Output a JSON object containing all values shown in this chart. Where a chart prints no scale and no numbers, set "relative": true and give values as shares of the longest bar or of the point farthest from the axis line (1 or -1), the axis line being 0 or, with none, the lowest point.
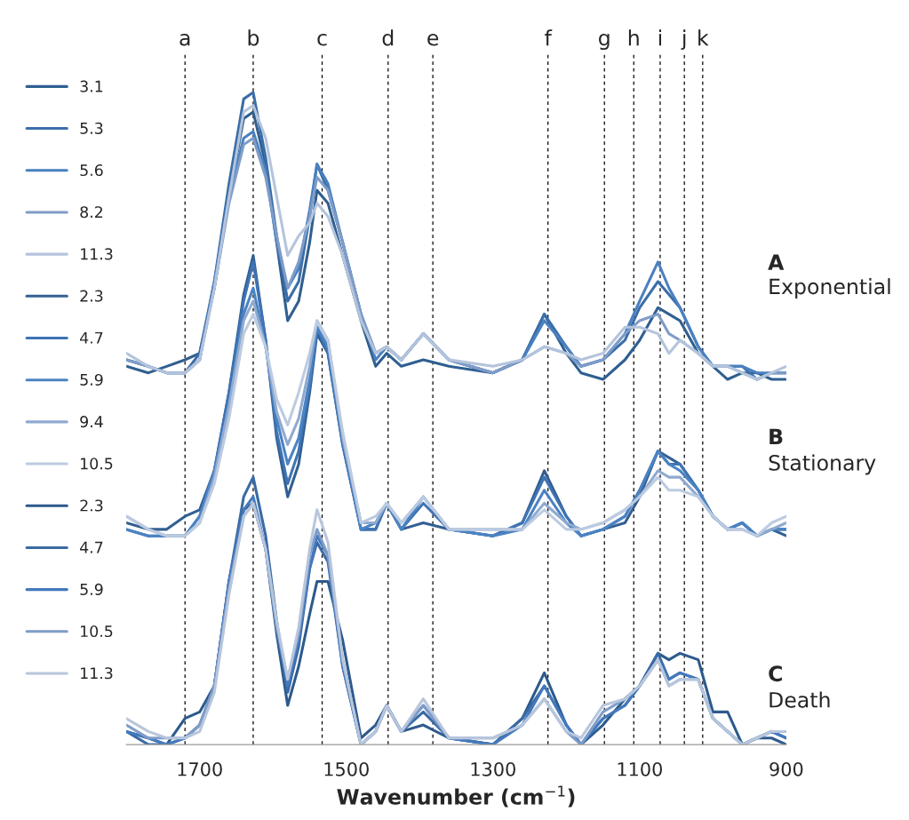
{
  "chart_data": {
    "type": "line",
    "relative": true,
    "xlabel": "Wavenumber (cm$^{−1}$)",
    "xlim": [
      1800,
      900
    ],
    "xticks": [
      1700,
      1500,
      1300,
      1100,
      900
    ],
    "legend": "left",
    "x": [
      1800,
      1770,
      1745,
      1720,
      1700,
      1680,
      1660,
      1640,
      1627,
      1610,
      1595,
      1580,
      1565,
      1550,
      1540,
      1525,
      1505,
      1480,
      1460,
      1445,
      1425,
      1395,
      1360,
      1300,
      1260,
      1230,
      1200,
      1180,
      1150,
      1120,
      1100,
      1075,
      1060,
      1045,
      1020,
      1000,
      980,
      960,
      940,
      920,
      900
    ],
    "series": [
      {
        "name": "3.1",
        "color": "#2f5f90",
        "values": [
          0.58,
          0.57,
          0.58,
          0.59,
          0.6,
          0.7,
          0.84,
          0.96,
          0.97,
          0.89,
          0.77,
          0.65,
          0.68,
          0.77,
          0.85,
          0.83,
          0.75,
          0.65,
          0.58,
          0.6,
          0.58,
          0.59,
          0.58,
          0.57,
          0.59,
          0.66,
          0.6,
          0.57,
          0.56,
          0.59,
          0.62,
          0.67,
          0.66,
          0.65,
          0.6,
          0.58,
          0.56,
          0.57,
          0.57,
          0.56,
          0.56
        ]
      },
      {
        "name": "5.3",
        "color": "#3a6ea8",
        "values": [
          0.59,
          0.58,
          0.57,
          0.57,
          0.6,
          0.71,
          0.86,
          0.99,
          1.0,
          0.9,
          0.78,
          0.68,
          0.71,
          0.81,
          0.89,
          0.85,
          0.77,
          0.66,
          0.6,
          0.61,
          0.59,
          0.63,
          0.59,
          0.57,
          0.59,
          0.66,
          0.61,
          0.58,
          0.59,
          0.62,
          0.67,
          0.71,
          0.69,
          0.67,
          0.61,
          0.58,
          0.58,
          0.58,
          0.56,
          0.57,
          0.57
        ]
      },
      {
        "name": "5.6",
        "color": "#4a80c0",
        "values": [
          0.59,
          0.58,
          0.57,
          0.57,
          0.59,
          0.71,
          0.84,
          0.93,
          0.94,
          0.88,
          0.77,
          0.7,
          0.73,
          0.82,
          0.89,
          0.86,
          0.77,
          0.66,
          0.59,
          0.61,
          0.59,
          0.63,
          0.59,
          0.57,
          0.59,
          0.65,
          0.61,
          0.58,
          0.59,
          0.63,
          0.68,
          0.74,
          0.7,
          0.67,
          0.61,
          0.58,
          0.58,
          0.58,
          0.57,
          0.57,
          0.57
        ]
      },
      {
        "name": "8.2",
        "color": "#7f9cc8",
        "values": [
          0.59,
          0.58,
          0.57,
          0.57,
          0.59,
          0.7,
          0.83,
          0.92,
          0.93,
          0.87,
          0.78,
          0.7,
          0.74,
          0.81,
          0.87,
          0.85,
          0.77,
          0.66,
          0.6,
          0.61,
          0.59,
          0.63,
          0.59,
          0.57,
          0.59,
          0.61,
          0.6,
          0.58,
          0.59,
          0.63,
          0.65,
          0.66,
          0.63,
          0.62,
          0.6,
          0.58,
          0.58,
          0.57,
          0.56,
          0.57,
          0.57
        ]
      },
      {
        "name": "11.3",
        "color": "#b4c4dc",
        "values": [
          0.6,
          0.58,
          0.57,
          0.57,
          0.59,
          0.7,
          0.84,
          0.97,
          0.98,
          0.93,
          0.84,
          0.75,
          0.78,
          0.8,
          0.83,
          0.81,
          0.75,
          0.65,
          0.6,
          0.61,
          0.59,
          0.63,
          0.59,
          0.58,
          0.59,
          0.61,
          0.6,
          0.59,
          0.6,
          0.64,
          0.64,
          0.63,
          0.6,
          0.62,
          0.6,
          0.58,
          0.58,
          0.57,
          0.56,
          0.57,
          0.58
        ]
      },
      {
        "name": "2.3",
        "color": "#335f92",
        "values": [
          0.34,
          0.33,
          0.33,
          0.35,
          0.36,
          0.42,
          0.54,
          0.69,
          0.75,
          0.62,
          0.47,
          0.38,
          0.43,
          0.54,
          0.63,
          0.6,
          0.46,
          0.33,
          0.33,
          0.37,
          0.33,
          0.34,
          0.33,
          0.32,
          0.34,
          0.42,
          0.35,
          0.32,
          0.33,
          0.34,
          0.38,
          0.45,
          0.44,
          0.43,
          0.39,
          0.35,
          0.33,
          0.34,
          0.32,
          0.33,
          0.32
        ]
      },
      {
        "name": "4.7",
        "color": "#3e74b4",
        "values": [
          0.33,
          0.32,
          0.32,
          0.32,
          0.35,
          0.42,
          0.54,
          0.68,
          0.74,
          0.62,
          0.48,
          0.4,
          0.45,
          0.55,
          0.64,
          0.6,
          0.46,
          0.33,
          0.33,
          0.37,
          0.33,
          0.37,
          0.33,
          0.32,
          0.34,
          0.41,
          0.35,
          0.32,
          0.33,
          0.35,
          0.39,
          0.45,
          0.43,
          0.43,
          0.39,
          0.35,
          0.33,
          0.34,
          0.32,
          0.33,
          0.33
        ]
      },
      {
        "name": "5.9",
        "color": "#4b83c3",
        "values": [
          0.33,
          0.32,
          0.32,
          0.32,
          0.35,
          0.42,
          0.52,
          0.66,
          0.7,
          0.61,
          0.5,
          0.43,
          0.47,
          0.56,
          0.64,
          0.61,
          0.47,
          0.33,
          0.34,
          0.37,
          0.33,
          0.38,
          0.33,
          0.32,
          0.33,
          0.39,
          0.34,
          0.32,
          0.33,
          0.35,
          0.39,
          0.45,
          0.43,
          0.42,
          0.39,
          0.35,
          0.33,
          0.34,
          0.32,
          0.33,
          0.33
        ]
      },
      {
        "name": "9.4",
        "color": "#8faad0",
        "values": [
          0.35,
          0.33,
          0.32,
          0.32,
          0.34,
          0.41,
          0.52,
          0.65,
          0.68,
          0.61,
          0.51,
          0.46,
          0.5,
          0.58,
          0.65,
          0.62,
          0.47,
          0.34,
          0.34,
          0.37,
          0.34,
          0.38,
          0.33,
          0.33,
          0.33,
          0.37,
          0.34,
          0.33,
          0.34,
          0.36,
          0.38,
          0.42,
          0.41,
          0.41,
          0.38,
          0.35,
          0.33,
          0.33,
          0.32,
          0.33,
          0.34
        ]
      },
      {
        "name": "10.5",
        "color": "#bccbe0",
        "values": [
          0.35,
          0.33,
          0.32,
          0.32,
          0.34,
          0.4,
          0.5,
          0.63,
          0.66,
          0.61,
          0.53,
          0.49,
          0.54,
          0.6,
          0.65,
          0.62,
          0.48,
          0.34,
          0.35,
          0.37,
          0.34,
          0.38,
          0.33,
          0.33,
          0.33,
          0.36,
          0.33,
          0.33,
          0.34,
          0.36,
          0.38,
          0.41,
          0.39,
          0.39,
          0.38,
          0.35,
          0.33,
          0.33,
          0.32,
          0.34,
          0.35
        ]
      },
      {
        "name": "2.3",
        "color": "#2d5a8c",
        "values": [
          0.02,
          0.01,
          0.0,
          0.04,
          0.05,
          0.09,
          0.25,
          0.36,
          0.37,
          0.3,
          0.17,
          0.06,
          0.12,
          0.2,
          0.25,
          0.25,
          0.16,
          0.01,
          0.03,
          0.06,
          0.02,
          0.03,
          0.01,
          0.0,
          0.04,
          0.11,
          0.03,
          0.0,
          0.03,
          0.07,
          0.09,
          0.14,
          0.13,
          0.14,
          0.13,
          0.05,
          0.05,
          0.0,
          0.01,
          0.01,
          0.0
        ]
      },
      {
        "name": "4.7",
        "color": "#3a6aa5",
        "values": [
          0.02,
          0.0,
          0.0,
          0.01,
          0.03,
          0.09,
          0.25,
          0.38,
          0.41,
          0.32,
          0.19,
          0.08,
          0.15,
          0.27,
          0.31,
          0.28,
          0.12,
          0.0,
          0.02,
          0.06,
          0.02,
          0.05,
          0.01,
          0.0,
          0.04,
          0.09,
          0.03,
          0.0,
          0.04,
          0.06,
          0.09,
          0.14,
          0.1,
          0.11,
          0.1,
          0.04,
          0.02,
          0.0,
          0.01,
          0.02,
          0.01
        ]
      },
      {
        "name": "5.9",
        "color": "#4379bd",
        "values": [
          0.02,
          0.01,
          0.0,
          0.01,
          0.03,
          0.09,
          0.25,
          0.36,
          0.38,
          0.3,
          0.18,
          0.09,
          0.16,
          0.27,
          0.32,
          0.29,
          0.12,
          0.0,
          0.02,
          0.06,
          0.02,
          0.06,
          0.01,
          0.0,
          0.03,
          0.09,
          0.03,
          0.0,
          0.04,
          0.06,
          0.09,
          0.13,
          0.1,
          0.11,
          0.1,
          0.04,
          0.02,
          0.0,
          0.01,
          0.02,
          0.01
        ]
      },
      {
        "name": "10.5",
        "color": "#7f9cc8",
        "values": [
          0.03,
          0.01,
          0.01,
          0.01,
          0.03,
          0.09,
          0.24,
          0.35,
          0.37,
          0.3,
          0.18,
          0.1,
          0.17,
          0.29,
          0.33,
          0.29,
          0.13,
          0.0,
          0.02,
          0.06,
          0.02,
          0.06,
          0.01,
          0.01,
          0.03,
          0.07,
          0.02,
          0.0,
          0.05,
          0.07,
          0.09,
          0.13,
          0.09,
          0.1,
          0.1,
          0.04,
          0.02,
          0.0,
          0.01,
          0.02,
          0.02
        ]
      },
      {
        "name": "11.3",
        "color": "#b8c6dc",
        "values": [
          0.04,
          0.02,
          0.01,
          0.01,
          0.02,
          0.08,
          0.23,
          0.35,
          0.37,
          0.3,
          0.19,
          0.1,
          0.18,
          0.3,
          0.36,
          0.31,
          0.13,
          0.0,
          0.02,
          0.06,
          0.02,
          0.07,
          0.01,
          0.01,
          0.03,
          0.07,
          0.02,
          0.01,
          0.06,
          0.07,
          0.09,
          0.13,
          0.09,
          0.1,
          0.1,
          0.04,
          0.02,
          0.0,
          0.01,
          0.02,
          0.02
        ]
      }
    ],
    "ref_lines": [
      {
        "axis": "x",
        "value": 1720,
        "label": "a",
        "color": "#000000",
        "line_style": "dashed"
      },
      {
        "axis": "x",
        "value": 1627,
        "label": "b",
        "color": "#000000",
        "line_style": "dashed"
      },
      {
        "axis": "x",
        "value": 1533,
        "label": "c",
        "color": "#000000",
        "line_style": "dashed"
      },
      {
        "axis": "x",
        "value": 1443,
        "label": "d",
        "color": "#000000",
        "line_style": "dashed"
      },
      {
        "axis": "x",
        "value": 1382,
        "label": "e",
        "color": "#000000",
        "line_style": "dashed"
      },
      {
        "axis": "x",
        "value": 1225,
        "label": "f",
        "color": "#000000",
        "line_style": "dashed"
      },
      {
        "axis": "x",
        "value": 1148,
        "label": "g",
        "color": "#000000",
        "line_style": "dashed"
      },
      {
        "axis": "x",
        "value": 1108,
        "label": "h",
        "color": "#000000",
        "line_style": "dashed"
      },
      {
        "axis": "x",
        "value": 1072,
        "label": "i",
        "color": "#000000",
        "line_style": "dashed"
      },
      {
        "axis": "x",
        "value": 1039,
        "label": "j",
        "color": "#000000",
        "line_style": "dashed"
      },
      {
        "axis": "x",
        "value": 1014,
        "label": "k",
        "color": "#000000",
        "line_style": "dashed"
      }
    ],
    "annotations": [
      "A",
      "Exponential",
      "B",
      "Stationary",
      "C",
      "Death"
    ]
  }
}
